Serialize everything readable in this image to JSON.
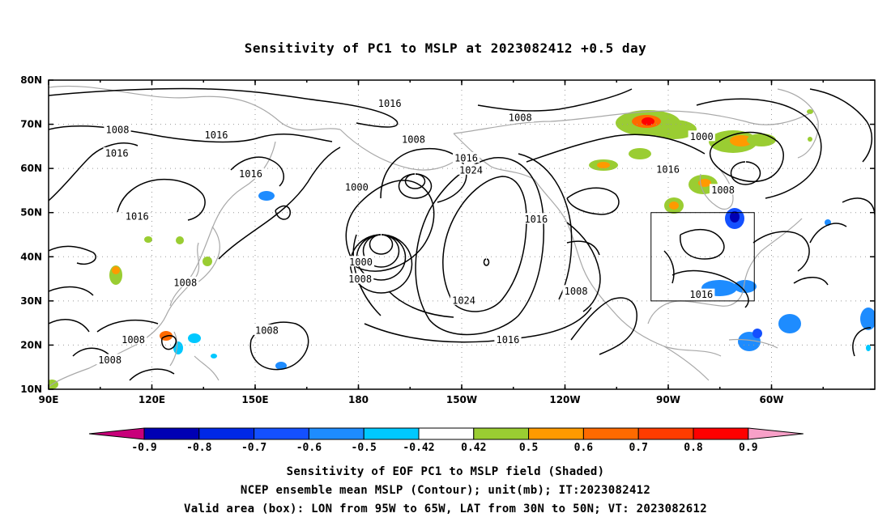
{
  "title": "Sensitivity of PC1 to MSLP at 2023082412 +0.5 day",
  "map": {
    "lon_labels": [
      "90E",
      "120E",
      "150E",
      "180",
      "150W",
      "120W",
      "90W",
      "60W"
    ],
    "lat_labels": [
      "80N",
      "70N",
      "60N",
      "50N",
      "40N",
      "30N",
      "20N",
      "10N"
    ],
    "contour_labels": [
      {
        "text": "1016",
        "lon": -170.9,
        "lat": 74.8
      },
      {
        "text": "1008",
        "lon": -133.0,
        "lat": 71.6
      },
      {
        "text": "1008",
        "lon": 110.0,
        "lat": 68.8
      },
      {
        "text": "1016",
        "lon": 138.7,
        "lat": 67.6
      },
      {
        "text": "1008",
        "lon": -164.0,
        "lat": 66.6
      },
      {
        "text": "1016",
        "lon": 109.8,
        "lat": 63.5
      },
      {
        "text": "1000",
        "lon": -80.3,
        "lat": 67.3
      },
      {
        "text": "1016",
        "lon": -148.7,
        "lat": 62.4
      },
      {
        "text": "1024",
        "lon": -147.3,
        "lat": 59.7
      },
      {
        "text": "1016",
        "lon": -90.1,
        "lat": 59.8
      },
      {
        "text": "1016",
        "lon": 148.7,
        "lat": 58.8
      },
      {
        "text": "1000",
        "lon": 179.5,
        "lat": 55.8
      },
      {
        "text": "1008",
        "lon": -74.1,
        "lat": 55.2
      },
      {
        "text": "1016",
        "lon": 115.7,
        "lat": 49.2
      },
      {
        "text": "1016",
        "lon": -128.4,
        "lat": 48.6
      },
      {
        "text": "1000",
        "lon": -179.3,
        "lat": 38.9
      },
      {
        "text": "1008",
        "lon": -179.5,
        "lat": 35.0
      },
      {
        "text": "1008",
        "lon": 129.7,
        "lat": 34.2
      },
      {
        "text": "1008",
        "lon": -116.8,
        "lat": 32.3
      },
      {
        "text": "1016",
        "lon": -80.4,
        "lat": 31.5
      },
      {
        "text": "1024",
        "lon": -149.4,
        "lat": 30.2
      },
      {
        "text": "1008",
        "lon": 153.4,
        "lat": 23.4
      },
      {
        "text": "1016",
        "lon": -136.6,
        "lat": 21.3
      },
      {
        "text": "1008",
        "lon": 114.6,
        "lat": 21.3
      },
      {
        "text": "1008",
        "lon": 107.8,
        "lat": 16.7
      }
    ],
    "valid_box": {
      "lon_west": -95,
      "lon_east": -65,
      "lat_south": 30,
      "lat_north": 50
    }
  },
  "colorbar": {
    "labels": [
      "-0.9",
      "-0.8",
      "-0.7",
      "-0.6",
      "-0.5",
      "-0.42",
      "0.42",
      "0.5",
      "0.6",
      "0.7",
      "0.8",
      "0.9"
    ],
    "colors": [
      "#c8007a",
      "#0000b4",
      "#0028e6",
      "#1450ff",
      "#1e8cff",
      "#00c8ff",
      "#ffffff",
      "#9acd32",
      "#ff9a00",
      "#ff6a00",
      "#ff3c00",
      "#ff0000",
      "#f8a0c8"
    ]
  },
  "footer": {
    "line1": "Sensitivity of EOF PC1 to MSLP field (Shaded)",
    "line2": "NCEP ensemble mean MSLP (Contour); unit(mb); IT:2023082412",
    "line3": "Valid area (box): LON from 95W to 65W, LAT from 30N to 50N; VT: 2023082612"
  }
}
